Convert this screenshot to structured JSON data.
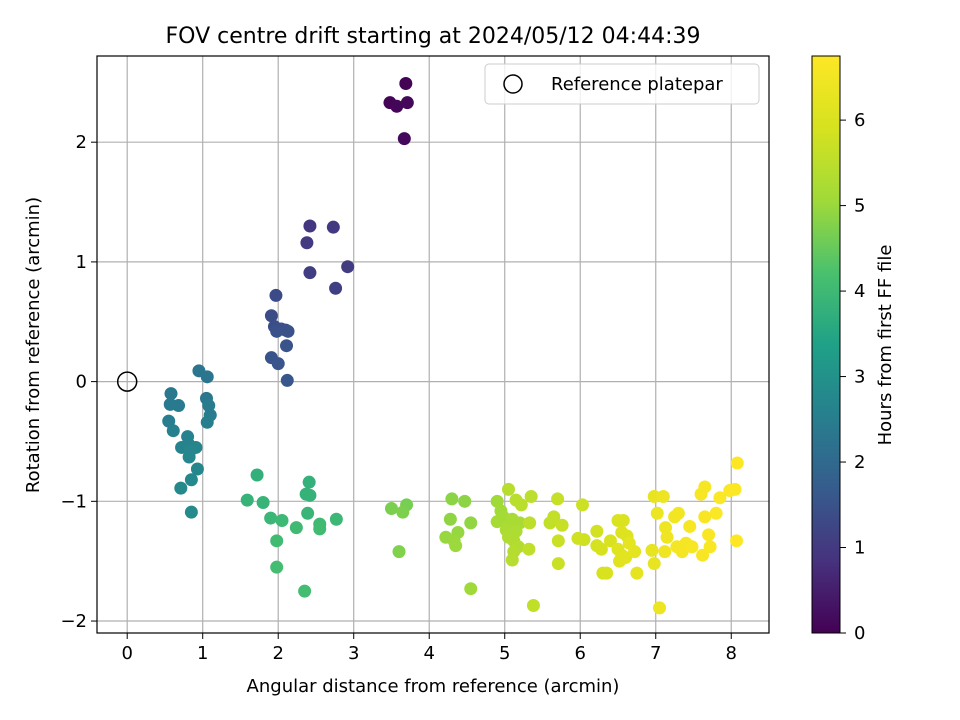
{
  "chart_data": {
    "type": "scatter",
    "title": "FOV centre drift starting at 2024/05/12 04:44:39",
    "xlabel": "Angular distance from reference (arcmin)",
    "ylabel": "Rotation from reference (arcmin)",
    "xlim": [
      -0.4,
      8.5
    ],
    "ylim": [
      -2.1,
      2.72
    ],
    "xticks": [
      0,
      1,
      2,
      3,
      4,
      5,
      6,
      7,
      8
    ],
    "yticks": [
      -2,
      -1,
      0,
      1,
      2
    ],
    "grid": true,
    "legend": {
      "position": "top-right",
      "entries": [
        "Reference platepar"
      ]
    },
    "reference_point": {
      "x": 0,
      "y": 0,
      "label": "Reference platepar"
    },
    "colorbar": {
      "label": "Hours from first FF file",
      "colormap": "viridis",
      "range": [
        0,
        6.75
      ],
      "ticks": [
        0,
        1,
        2,
        3,
        4,
        5,
        6
      ]
    },
    "points": [
      [
        3.69,
        2.49,
        0.05
      ],
      [
        3.48,
        2.33,
        0.07
      ],
      [
        3.57,
        2.3,
        0.09
      ],
      [
        3.71,
        2.33,
        0.11
      ],
      [
        3.67,
        2.03,
        0.14
      ],
      [
        2.42,
        1.3,
        0.95
      ],
      [
        2.73,
        1.29,
        0.98
      ],
      [
        2.38,
        1.16,
        1.01
      ],
      [
        2.92,
        0.96,
        1.04
      ],
      [
        2.42,
        0.91,
        1.07
      ],
      [
        2.76,
        0.78,
        1.1
      ],
      [
        1.97,
        0.72,
        1.35
      ],
      [
        1.91,
        0.55,
        1.37
      ],
      [
        1.95,
        0.46,
        1.4
      ],
      [
        2.04,
        0.44,
        1.42
      ],
      [
        2.1,
        0.43,
        1.44
      ],
      [
        1.98,
        0.42,
        1.46
      ],
      [
        2.13,
        0.42,
        1.48
      ],
      [
        2.11,
        0.3,
        1.5
      ],
      [
        1.91,
        0.2,
        1.52
      ],
      [
        2.0,
        0.15,
        1.55
      ],
      [
        2.12,
        0.01,
        1.57
      ],
      [
        0.95,
        0.09,
        2.3
      ],
      [
        1.06,
        0.04,
        2.32
      ],
      [
        0.58,
        -0.1,
        2.35
      ],
      [
        1.05,
        -0.14,
        2.37
      ],
      [
        0.57,
        -0.19,
        2.4
      ],
      [
        0.68,
        -0.2,
        2.42
      ],
      [
        1.08,
        -0.2,
        2.45
      ],
      [
        1.1,
        -0.28,
        2.47
      ],
      [
        0.55,
        -0.33,
        2.5
      ],
      [
        1.06,
        -0.34,
        2.52
      ],
      [
        0.61,
        -0.41,
        2.55
      ],
      [
        0.8,
        -0.46,
        2.57
      ],
      [
        0.81,
        -0.52,
        2.6
      ],
      [
        0.72,
        -0.55,
        2.62
      ],
      [
        0.91,
        -0.55,
        2.65
      ],
      [
        0.83,
        -0.58,
        2.67
      ],
      [
        0.82,
        -0.63,
        2.7
      ],
      [
        0.93,
        -0.73,
        2.72
      ],
      [
        0.85,
        -0.82,
        2.75
      ],
      [
        0.71,
        -0.89,
        2.77
      ],
      [
        0.85,
        -1.09,
        2.8
      ],
      [
        1.72,
        -0.78,
        3.75
      ],
      [
        2.41,
        -0.84,
        3.78
      ],
      [
        2.37,
        -0.94,
        3.8
      ],
      [
        2.42,
        -0.95,
        3.82
      ],
      [
        1.59,
        -0.99,
        3.85
      ],
      [
        1.8,
        -1.01,
        3.87
      ],
      [
        2.39,
        -1.1,
        3.9
      ],
      [
        1.9,
        -1.14,
        3.92
      ],
      [
        2.77,
        -1.15,
        3.95
      ],
      [
        2.05,
        -1.16,
        3.97
      ],
      [
        2.55,
        -1.19,
        4.0
      ],
      [
        2.24,
        -1.22,
        4.02
      ],
      [
        2.55,
        -1.23,
        4.05
      ],
      [
        1.98,
        -1.33,
        4.07
      ],
      [
        1.98,
        -1.55,
        4.1
      ],
      [
        2.35,
        -1.75,
        4.12
      ],
      [
        3.7,
        -1.03,
        4.65
      ],
      [
        3.5,
        -1.06,
        4.7
      ],
      [
        3.65,
        -1.09,
        4.72
      ],
      [
        3.6,
        -1.42,
        4.75
      ],
      [
        4.3,
        -0.98,
        4.85
      ],
      [
        4.47,
        -1.0,
        4.87
      ],
      [
        4.28,
        -1.15,
        4.9
      ],
      [
        4.55,
        -1.18,
        4.92
      ],
      [
        4.38,
        -1.26,
        4.95
      ],
      [
        4.22,
        -1.3,
        4.97
      ],
      [
        4.33,
        -1.33,
        5.0
      ],
      [
        4.35,
        -1.37,
        5.02
      ],
      [
        4.55,
        -1.73,
        5.05
      ],
      [
        4.9,
        -1.0,
        5.07
      ],
      [
        4.95,
        -1.08,
        5.1
      ],
      [
        4.98,
        -1.13,
        5.12
      ],
      [
        4.9,
        -1.17,
        5.15
      ],
      [
        5.05,
        -1.2,
        5.17
      ],
      [
        5.1,
        -1.15,
        5.2
      ],
      [
        5.2,
        -1.18,
        5.22
      ],
      [
        5.02,
        -1.24,
        5.25
      ],
      [
        5.15,
        -1.25,
        5.27
      ],
      [
        5.05,
        -1.3,
        5.3
      ],
      [
        5.12,
        -1.33,
        5.32
      ],
      [
        5.18,
        -1.38,
        5.35
      ],
      [
        5.12,
        -1.42,
        5.37
      ],
      [
        5.1,
        -1.49,
        5.4
      ],
      [
        5.05,
        -0.9,
        5.42
      ],
      [
        5.15,
        -0.99,
        5.45
      ],
      [
        5.22,
        -1.03,
        5.47
      ],
      [
        5.35,
        -0.96,
        5.5
      ],
      [
        5.33,
        -1.18,
        5.52
      ],
      [
        5.32,
        -1.4,
        5.55
      ],
      [
        5.38,
        -1.87,
        5.57
      ],
      [
        5.6,
        -1.18,
        5.6
      ],
      [
        5.65,
        -1.13,
        5.62
      ],
      [
        5.7,
        -0.98,
        5.65
      ],
      [
        5.76,
        -1.2,
        5.67
      ],
      [
        5.71,
        -1.33,
        5.7
      ],
      [
        5.71,
        -1.52,
        5.72
      ],
      [
        6.03,
        -1.03,
        5.75
      ],
      [
        5.97,
        -1.31,
        5.8
      ],
      [
        6.05,
        -1.32,
        5.82
      ],
      [
        6.22,
        -1.25,
        5.85
      ],
      [
        6.22,
        -1.37,
        5.87
      ],
      [
        6.28,
        -1.4,
        5.9
      ],
      [
        6.3,
        -1.6,
        5.92
      ],
      [
        6.35,
        -1.6,
        5.95
      ],
      [
        6.4,
        -1.33,
        5.97
      ],
      [
        6.5,
        -1.16,
        6.0
      ],
      [
        6.57,
        -1.16,
        6.02
      ],
      [
        6.55,
        -1.26,
        6.05
      ],
      [
        6.62,
        -1.29,
        6.07
      ],
      [
        6.5,
        -1.4,
        6.1
      ],
      [
        6.55,
        -1.45,
        6.12
      ],
      [
        6.52,
        -1.5,
        6.15
      ],
      [
        6.6,
        -1.47,
        6.17
      ],
      [
        6.65,
        -1.35,
        6.2
      ],
      [
        6.72,
        -1.42,
        6.22
      ],
      [
        6.75,
        -1.6,
        6.25
      ],
      [
        6.95,
        -1.41,
        6.27
      ],
      [
        6.98,
        -1.52,
        6.3
      ],
      [
        6.98,
        -0.96,
        6.32
      ],
      [
        7.02,
        -1.1,
        6.35
      ],
      [
        7.05,
        -1.89,
        6.37
      ],
      [
        7.1,
        -0.96,
        6.4
      ],
      [
        7.13,
        -1.22,
        6.42
      ],
      [
        7.15,
        -1.3,
        6.45
      ],
      [
        7.12,
        -1.42,
        6.47
      ],
      [
        7.25,
        -1.13,
        6.5
      ],
      [
        7.3,
        -1.1,
        6.52
      ],
      [
        7.28,
        -1.38,
        6.55
      ],
      [
        7.35,
        -1.42,
        6.57
      ],
      [
        7.4,
        -1.35,
        6.58
      ],
      [
        7.45,
        -1.21,
        6.6
      ],
      [
        7.48,
        -1.38,
        6.61
      ],
      [
        7.6,
        -0.94,
        6.62
      ],
      [
        7.65,
        -0.88,
        6.63
      ],
      [
        7.62,
        -1.45,
        6.64
      ],
      [
        7.65,
        -1.13,
        6.65
      ],
      [
        7.7,
        -1.28,
        6.66
      ],
      [
        7.72,
        -1.38,
        6.67
      ],
      [
        7.8,
        -1.1,
        6.68
      ],
      [
        7.85,
        -0.97,
        6.69
      ],
      [
        7.98,
        -0.91,
        6.7
      ],
      [
        8.05,
        -0.9,
        6.72
      ],
      [
        8.08,
        -0.68,
        6.74
      ],
      [
        8.07,
        -1.33,
        6.75
      ]
    ]
  }
}
